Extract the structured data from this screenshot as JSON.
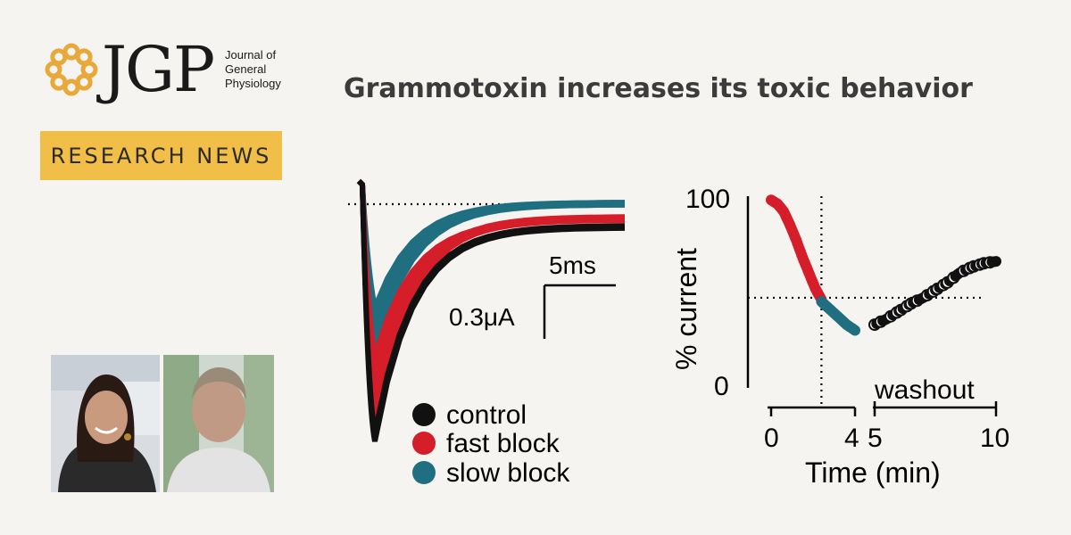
{
  "journal": {
    "acronym": "JGP",
    "name_lines": [
      "Journal of",
      "General",
      "Physiology"
    ],
    "brand_color": "#e8a93a"
  },
  "badge": {
    "label": "RESEARCH NEWS",
    "color": "#f1be47"
  },
  "headline": "Grammotoxin increases its toxic behavior",
  "photos": [
    {
      "name": "author-photo-woman"
    },
    {
      "name": "author-photo-man"
    }
  ],
  "figure": {
    "left_panel": {
      "scale_time": "5ms",
      "scale_current": "0.3μA",
      "legend": [
        {
          "label": "control",
          "color": "#111111"
        },
        {
          "label": "fast block",
          "color": "#d61d2a"
        },
        {
          "label": "slow block",
          "color": "#1f6f80"
        }
      ]
    },
    "right_panel": {
      "y_label": "% current",
      "y_ticks": [
        "100",
        "0"
      ],
      "x_label": "Time (min)",
      "x_ticks": [
        "0",
        "4",
        "5",
        "10"
      ],
      "washout_label": "washout"
    }
  },
  "chart_data": {
    "type": "scatter",
    "xlabel": "Time (min)",
    "ylabel": "% current",
    "xlim": [
      0,
      10
    ],
    "ylim": [
      0,
      100
    ],
    "series": [
      {
        "name": "fast block",
        "color": "#d61d2a",
        "points": [
          [
            0,
            98
          ],
          [
            0.3,
            96
          ],
          [
            0.6,
            92
          ],
          [
            0.9,
            85
          ],
          [
            1.2,
            77
          ],
          [
            1.5,
            68
          ],
          [
            1.8,
            60
          ],
          [
            2.1,
            52
          ],
          [
            2.4,
            46
          ]
        ]
      },
      {
        "name": "slow block",
        "color": "#1f6f80",
        "points": [
          [
            2.4,
            45
          ],
          [
            2.8,
            41
          ],
          [
            3.2,
            37
          ],
          [
            3.6,
            33
          ],
          [
            4.0,
            30
          ]
        ]
      },
      {
        "name": "control",
        "color": "#111111",
        "points": [
          [
            5.0,
            33
          ],
          [
            5.5,
            36
          ],
          [
            6.0,
            40
          ],
          [
            6.5,
            44
          ],
          [
            7.0,
            47
          ],
          [
            7.5,
            51
          ],
          [
            8.0,
            55
          ],
          [
            8.5,
            60
          ],
          [
            9.0,
            63
          ],
          [
            9.5,
            65
          ],
          [
            10.0,
            66
          ]
        ]
      }
    ],
    "reference_x": 2.4,
    "reference_y": 47
  }
}
